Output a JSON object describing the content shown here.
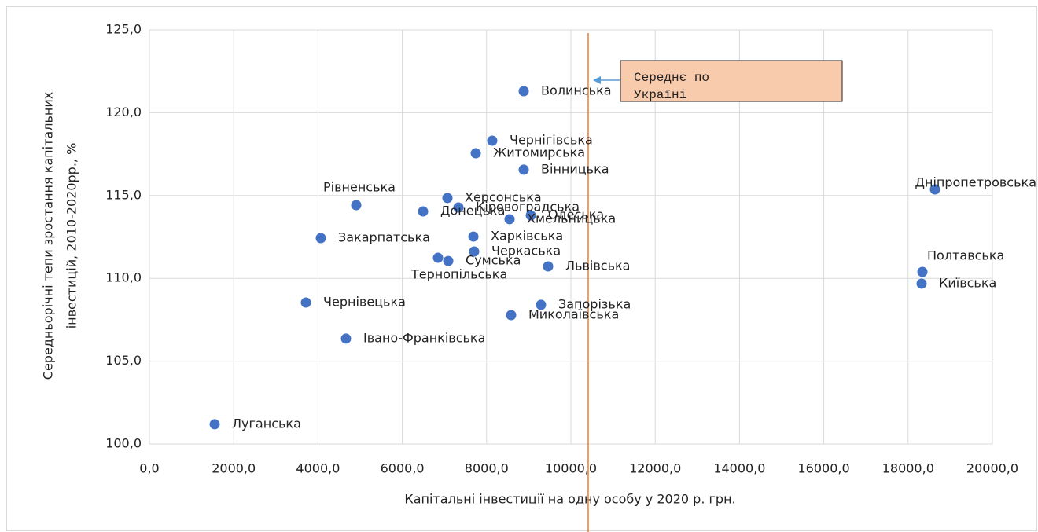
{
  "chart_data": {
    "type": "scatter",
    "xlabel": "Капітальні інвестиції на одну особу у 2020 р. грн.",
    "ylabel": [
      "Середньорічні тепи зростання капітальних",
      "інвестицій, 2010-2020рр., %"
    ],
    "color": "#4472c4",
    "xlim": [
      0,
      20000
    ],
    "xticks": [
      {
        "value": 0,
        "label": "0,0"
      },
      {
        "value": 2000,
        "label": "2000,0"
      },
      {
        "value": 4000,
        "label": "4000,0"
      },
      {
        "value": 6000,
        "label": "6000,0"
      },
      {
        "value": 8000,
        "label": "8000,0"
      },
      {
        "value": 10000,
        "label": "10000,0"
      },
      {
        "value": 12000,
        "label": "12000,0"
      },
      {
        "value": 14000,
        "label": "14000,0"
      },
      {
        "value": 16000,
        "label": "16000,0"
      },
      {
        "value": 18000,
        "label": "18000,0"
      },
      {
        "value": 20000,
        "label": "20000,0"
      }
    ],
    "ylim": [
      100,
      125
    ],
    "yticks": [
      {
        "value": 100,
        "label": "100,0"
      },
      {
        "value": 105,
        "label": "105,0"
      },
      {
        "value": 110,
        "label": "110,0"
      },
      {
        "value": 115,
        "label": "115,0"
      },
      {
        "value": 120,
        "label": "120,0"
      },
      {
        "value": 125,
        "label": "125,0"
      }
    ],
    "grid": true,
    "mean_line": {
      "value": 10410,
      "color": "#ed7d31",
      "label": "Середнє по Україні"
    },
    "labels": [
      "Волинська",
      "Чернігівська",
      "Житомирська",
      "Вінницька",
      "Рівненська",
      "Херсонська",
      "Кіровоградська",
      "Донецька",
      "Одеська",
      "Хмельницька",
      "Закарпатська",
      "Харківська",
      "Черкаська",
      "Сумська",
      "Тернопільська",
      "Львівська",
      "Чернівецька",
      "Запорізька",
      "Миколаївська",
      "Івано-Франківська",
      "Луганська",
      "Дніпропетровська",
      "Полтавська",
      "Київська"
    ],
    "x": [
      8881,
      8134,
      7743,
      8881,
      4907,
      7071,
      7332,
      6493,
      9049,
      8545,
      4067,
      7687,
      7705,
      7090,
      6847,
      9459,
      3713,
      9291,
      8582,
      4664,
      1549,
      18638,
      18340,
      18321
    ],
    "y": [
      121.3,
      118.31,
      117.55,
      116.56,
      114.42,
      114.85,
      114.28,
      114.04,
      113.8,
      113.57,
      112.43,
      112.52,
      111.62,
      111.05,
      111.24,
      110.72,
      108.54,
      108.4,
      107.78,
      106.36,
      101.19,
      115.37,
      110.39,
      109.68
    ]
  }
}
